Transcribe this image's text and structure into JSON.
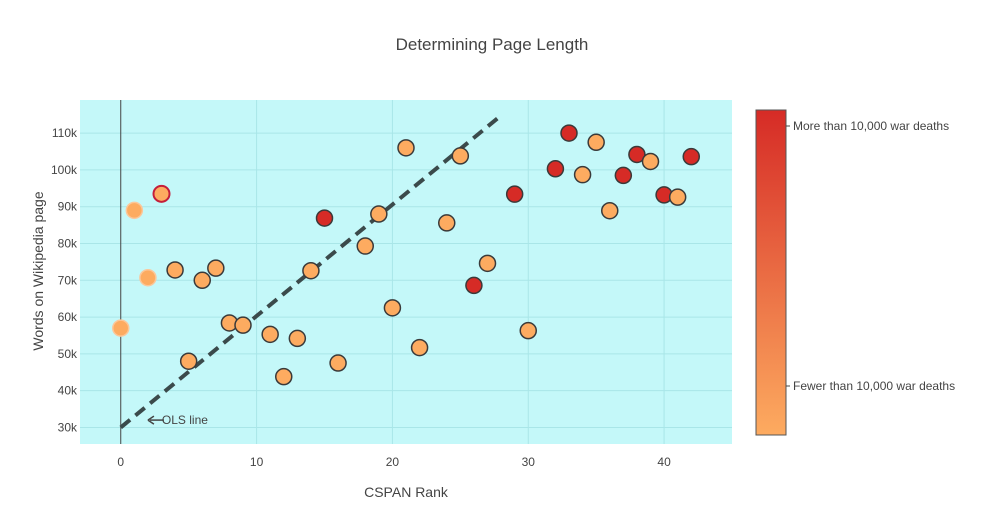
{
  "chart_data": {
    "type": "scatter",
    "title": "Determining Page Length",
    "xlabel": "CSPAN Rank",
    "ylabel": "Words on Wikipedia page",
    "xlim": [
      -3,
      45
    ],
    "ylim": [
      25500,
      119000
    ],
    "x_ticks": [
      0,
      10,
      20,
      30,
      40
    ],
    "x_tick_labels": [
      "0",
      "10",
      "20",
      "30",
      "40"
    ],
    "y_ticks": [
      30000,
      40000,
      50000,
      60000,
      70000,
      80000,
      90000,
      100000,
      110000
    ],
    "y_tick_labels": [
      "30k",
      "40k",
      "50k",
      "60k",
      "70k",
      "80k",
      "90k",
      "100k",
      "110k"
    ],
    "grid": true,
    "plot_background": "#c4f8f9",
    "colorscale": {
      "low": "#fdab60",
      "high": "#d62b26"
    },
    "colorbar_labels": {
      "high": "More than 10,000 war deaths",
      "low": "Fewer than 10,000 war deaths"
    },
    "points": [
      {
        "x": 0,
        "y": 57000,
        "war": false,
        "outlined": false
      },
      {
        "x": 1,
        "y": 89000,
        "war": false,
        "outlined": false
      },
      {
        "x": 2,
        "y": 70700,
        "war": false,
        "outlined": false
      },
      {
        "x": 3,
        "y": 93500,
        "war": false,
        "outlined": true,
        "highlight": true
      },
      {
        "x": 4,
        "y": 72800,
        "war": false,
        "outlined": true
      },
      {
        "x": 5,
        "y": 48000,
        "war": false,
        "outlined": true
      },
      {
        "x": 6,
        "y": 70000,
        "war": false,
        "outlined": true
      },
      {
        "x": 7,
        "y": 73300,
        "war": false,
        "outlined": true
      },
      {
        "x": 8,
        "y": 58400,
        "war": false,
        "outlined": true
      },
      {
        "x": 9,
        "y": 57800,
        "war": false,
        "outlined": true
      },
      {
        "x": 11,
        "y": 55300,
        "war": false,
        "outlined": true
      },
      {
        "x": 12,
        "y": 43800,
        "war": false,
        "outlined": true
      },
      {
        "x": 13,
        "y": 54200,
        "war": false,
        "outlined": true
      },
      {
        "x": 14,
        "y": 72600,
        "war": false,
        "outlined": true
      },
      {
        "x": 15,
        "y": 86900,
        "war": true,
        "outlined": true
      },
      {
        "x": 16,
        "y": 47500,
        "war": false,
        "outlined": true
      },
      {
        "x": 18,
        "y": 79300,
        "war": false,
        "outlined": true
      },
      {
        "x": 19,
        "y": 88000,
        "war": false,
        "outlined": true
      },
      {
        "x": 20,
        "y": 62500,
        "war": false,
        "outlined": true
      },
      {
        "x": 21,
        "y": 106000,
        "war": false,
        "outlined": true
      },
      {
        "x": 22,
        "y": 51700,
        "war": false,
        "outlined": true
      },
      {
        "x": 24,
        "y": 85600,
        "war": false,
        "outlined": true
      },
      {
        "x": 25,
        "y": 103800,
        "war": false,
        "outlined": true
      },
      {
        "x": 26,
        "y": 68600,
        "war": true,
        "outlined": true
      },
      {
        "x": 27,
        "y": 74600,
        "war": false,
        "outlined": true
      },
      {
        "x": 29,
        "y": 93400,
        "war": true,
        "outlined": true
      },
      {
        "x": 30,
        "y": 56300,
        "war": false,
        "outlined": true
      },
      {
        "x": 32,
        "y": 100300,
        "war": true,
        "outlined": true
      },
      {
        "x": 33,
        "y": 110000,
        "war": true,
        "outlined": true
      },
      {
        "x": 34,
        "y": 98700,
        "war": false,
        "outlined": true
      },
      {
        "x": 35,
        "y": 107500,
        "war": false,
        "outlined": true
      },
      {
        "x": 36,
        "y": 88900,
        "war": false,
        "outlined": true
      },
      {
        "x": 37,
        "y": 98500,
        "war": true,
        "outlined": true
      },
      {
        "x": 38,
        "y": 104200,
        "war": true,
        "outlined": true
      },
      {
        "x": 39,
        "y": 102300,
        "war": false,
        "outlined": true
      },
      {
        "x": 40,
        "y": 93200,
        "war": true,
        "outlined": true
      },
      {
        "x": 41,
        "y": 92600,
        "war": false,
        "outlined": true
      },
      {
        "x": 42,
        "y": 103600,
        "war": true,
        "outlined": true
      }
    ],
    "ols_line": {
      "x": [
        0,
        28
      ],
      "y": [
        30000,
        114800
      ]
    },
    "annotation": {
      "text": "OLS line",
      "x": 2,
      "y": 32000
    }
  }
}
